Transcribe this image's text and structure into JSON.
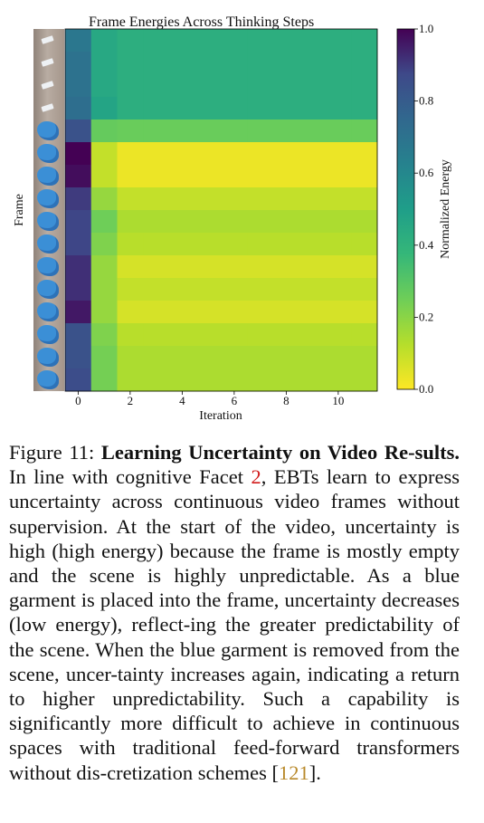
{
  "chart_data": {
    "type": "heatmap",
    "title": "Frame Energies Across Thinking Steps",
    "xlabel": "Iteration",
    "ylabel": "Frame",
    "x_ticks": [
      0,
      2,
      4,
      6,
      8,
      10
    ],
    "x_range": [
      -0.5,
      11.5
    ],
    "colorbar": {
      "label": "Normalized Energy",
      "range": [
        0.0,
        1.0
      ],
      "ticks": [
        "0.0",
        "0.2",
        "0.4",
        "0.6",
        "0.8",
        "1.0"
      ],
      "colormap": "viridis_r"
    },
    "rows": [
      {
        "frame": 1,
        "initial": 0.68,
        "step1": 0.45,
        "steady": 0.42
      },
      {
        "frame": 2,
        "initial": 0.7,
        "step1": 0.45,
        "steady": 0.42
      },
      {
        "frame": 3,
        "initial": 0.7,
        "step1": 0.45,
        "steady": 0.42
      },
      {
        "frame": 4,
        "initial": 0.72,
        "step1": 0.47,
        "steady": 0.42
      },
      {
        "frame": 5,
        "initial": 0.84,
        "step1": 0.27,
        "steady": 0.26
      },
      {
        "frame": 6,
        "initial": 1.0,
        "step1": 0.1,
        "steady": 0.03
      },
      {
        "frame": 7,
        "initial": 0.98,
        "step1": 0.1,
        "steady": 0.03
      },
      {
        "frame": 8,
        "initial": 0.9,
        "step1": 0.18,
        "steady": 0.1
      },
      {
        "frame": 9,
        "initial": 0.88,
        "step1": 0.25,
        "steady": 0.14
      },
      {
        "frame": 10,
        "initial": 0.88,
        "step1": 0.22,
        "steady": 0.12
      },
      {
        "frame": 11,
        "initial": 0.92,
        "step1": 0.18,
        "steady": 0.07
      },
      {
        "frame": 12,
        "initial": 0.92,
        "step1": 0.18,
        "steady": 0.1
      },
      {
        "frame": 13,
        "initial": 0.96,
        "step1": 0.18,
        "steady": 0.07
      },
      {
        "frame": 14,
        "initial": 0.84,
        "step1": 0.22,
        "steady": 0.12
      },
      {
        "frame": 15,
        "initial": 0.84,
        "step1": 0.24,
        "steady": 0.14
      },
      {
        "frame": 16,
        "initial": 0.86,
        "step1": 0.24,
        "steady": 0.14
      }
    ],
    "thumbnail_content": [
      "empty",
      "empty",
      "empty",
      "empty",
      "garment",
      "garment",
      "garment",
      "garment",
      "garment",
      "garment",
      "garment",
      "garment",
      "garment",
      "garment",
      "garment",
      "garment"
    ]
  },
  "caption": {
    "label": "Figure 11:",
    "title": "Learning Uncertainty on Video Re-sults.",
    "segments": [
      {
        "text": " In line with cognitive Facet ",
        "style": "normal"
      },
      {
        "text": "2",
        "style": "ref-red"
      },
      {
        "text": ", EBTs learn to express uncertainty across continuous video frames without supervision.  At the start of the video, uncertainty is high (high energy) because the frame is mostly empty and the scene is highly unpredictable. As a blue garment is placed into the frame, uncertainty decreases (low energy), reflect-ing the greater predictability of the scene. When the blue garment is removed from the scene, uncer-tainty increases again, indicating a return to higher unpredictability. Such a capability is significantly more difficult to achieve in continuous spaces with traditional feed-forward transformers without dis-cretization schemes ",
        "style": "normal"
      },
      {
        "text": "[",
        "style": "normal"
      },
      {
        "text": "121",
        "style": "ref-gold"
      },
      {
        "text": "].",
        "style": "normal"
      }
    ]
  }
}
